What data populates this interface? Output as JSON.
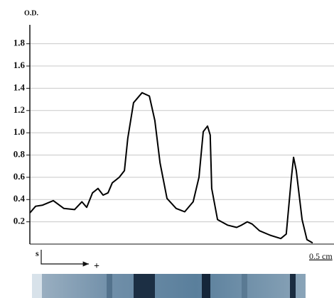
{
  "chart_data": {
    "type": "line",
    "y_label": "O.D.",
    "start_label": "s",
    "direction_label": "+",
    "scale_label": "0.5 cm",
    "x": [
      0,
      1.9,
      4.2,
      7.7,
      11.2,
      14.7,
      17.1,
      18.7,
      20.6,
      22.4,
      24.1,
      25.7,
      27.1,
      29.4,
      31.1,
      32.2,
      34.1,
      36.9,
      39.3,
      41.1,
      42.8,
      45.1,
      48.1,
      50.9,
      53.7,
      55.6,
      57,
      58.4,
      59.3,
      59.8,
      61.7,
      65,
      68,
      69.6,
      71.5,
      73.1,
      75.5,
      79,
      82.5,
      84.3,
      86,
      86.7,
      87.6,
      89.5,
      91.1,
      93
    ],
    "values": [
      0.28,
      0.34,
      0.35,
      0.39,
      0.32,
      0.31,
      0.38,
      0.33,
      0.46,
      0.5,
      0.44,
      0.46,
      0.55,
      0.6,
      0.66,
      0.95,
      1.27,
      1.36,
      1.33,
      1.11,
      0.73,
      0.41,
      0.32,
      0.29,
      0.38,
      0.6,
      1.01,
      1.06,
      0.98,
      0.5,
      0.22,
      0.17,
      0.15,
      0.17,
      0.2,
      0.18,
      0.12,
      0.08,
      0.05,
      0.09,
      0.6,
      0.78,
      0.66,
      0.22,
      0.04,
      0.01
    ],
    "color": "#000000",
    "xlim": [
      0,
      100
    ],
    "ylim": [
      0,
      1.97
    ],
    "yticks": [
      0.2,
      0.4,
      0.6,
      0.8,
      {
        "value": 1,
        "label": "1.0"
      },
      1.2,
      1.4,
      1.6,
      1.8
    ],
    "grid": true
  }
}
